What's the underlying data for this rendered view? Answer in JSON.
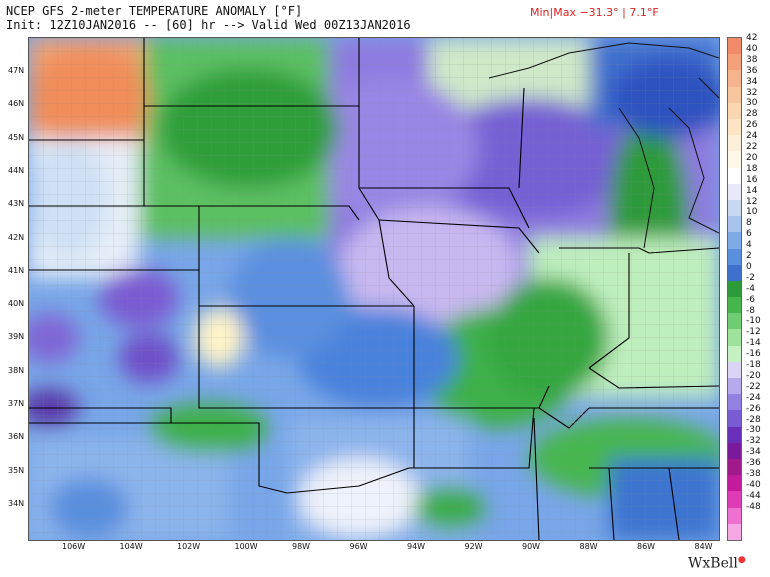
{
  "header": {
    "line1": "NCEP GFS 2-meter TEMPERATURE ANOMALY [°F]",
    "line2": "Init: 12Z10JAN2016 -- [60] hr --> Valid Wed 00Z13JAN2016",
    "minmax": "Min|Max −31.3° | 7.1°F"
  },
  "lat_labels": [
    "47N",
    "46N",
    "45N",
    "44N",
    "43N",
    "42N",
    "41N",
    "40N",
    "39N",
    "38N",
    "37N",
    "36N",
    "35N",
    "34N"
  ],
  "lon_labels": [
    "106W",
    "104W",
    "102W",
    "100W",
    "98W",
    "96W",
    "94W",
    "92W",
    "90W",
    "88W",
    "86W",
    "84W"
  ],
  "colorbar": {
    "labels": [
      "42",
      "38",
      "34",
      "30",
      "26",
      "22",
      "18",
      "14",
      "10",
      "6",
      "2",
      "-2",
      "-6",
      "-10",
      "-14",
      "-18",
      "-22",
      "-26",
      "-30",
      "-34",
      "-38",
      "-44",
      "-48"
    ],
    "more_labels": [
      "40",
      "36",
      "32",
      "28",
      "24",
      "20",
      "16",
      "12",
      "8",
      "4",
      "0",
      "-4",
      "-8",
      "-12",
      "-16",
      "-20",
      "-24",
      "-28",
      "-32",
      "-36",
      "-40",
      "-44",
      "-48"
    ],
    "colors": [
      "#f08a6a",
      "#f4a07a",
      "#f6b48c",
      "#f8c69e",
      "#fad6b0",
      "#fde4c4",
      "#fdf0d8",
      "#fff8e8",
      "#ffffff",
      "#e8e8f8",
      "#c8d8f0",
      "#a8c4ec",
      "#7eaae6",
      "#5a8fde",
      "#3e70cc",
      "#2d9b3a",
      "#45b54c",
      "#6fcc70",
      "#9ee29c",
      "#c5f0c2",
      "#dcd4f4",
      "#b8a8ec",
      "#9480e0",
      "#7a5cd2",
      "#6a2fb8",
      "#7a1a9a",
      "#a01a8c",
      "#c41a9c",
      "#de3cb6",
      "#ee70d0",
      "#f6a8e4"
    ]
  },
  "logo": {
    "text": "WxBell"
  }
}
